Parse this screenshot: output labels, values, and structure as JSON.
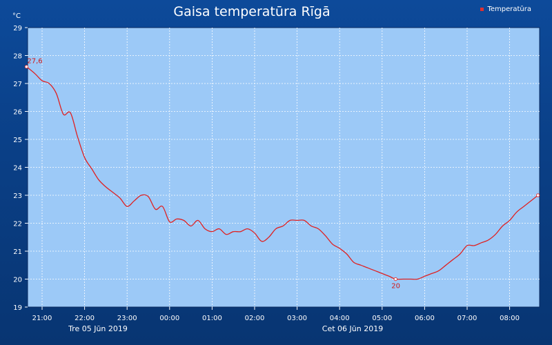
{
  "chart_data": {
    "type": "line",
    "title": "Gaisa temperatūra Rīgā",
    "unit_label": "°C",
    "legend": [
      "Temperatūra"
    ],
    "legend_position": "top-right",
    "grid": true,
    "ylim": [
      19,
      29
    ],
    "y_ticks": [
      "19",
      "20",
      "21",
      "22",
      "23",
      "24",
      "25",
      "26",
      "27",
      "28",
      "29"
    ],
    "x_ticks": [
      "21:00",
      "22:00",
      "23:00",
      "00:00",
      "01:00",
      "02:00",
      "03:00",
      "04:00",
      "05:00",
      "06:00",
      "07:00",
      "08:00"
    ],
    "date_labels": [
      "Tre 05 Jūn 2019",
      "Cet 06 Jūn 2019"
    ],
    "series": [
      {
        "name": "Temperatūra",
        "color": "#e02020",
        "x": [
          "20:38",
          "20:50",
          "21:00",
          "21:10",
          "21:20",
          "21:30",
          "21:40",
          "21:50",
          "22:00",
          "22:10",
          "22:20",
          "22:30",
          "22:40",
          "22:50",
          "23:00",
          "23:10",
          "23:20",
          "23:30",
          "23:40",
          "23:50",
          "00:00",
          "00:10",
          "00:20",
          "00:30",
          "00:40",
          "00:50",
          "01:00",
          "01:10",
          "01:20",
          "01:30",
          "01:40",
          "01:50",
          "02:00",
          "02:10",
          "02:20",
          "02:30",
          "02:40",
          "02:50",
          "03:00",
          "03:10",
          "03:20",
          "03:30",
          "03:40",
          "03:50",
          "04:00",
          "04:10",
          "04:20",
          "04:30",
          "04:40",
          "04:50",
          "05:00",
          "05:10",
          "05:19",
          "05:30",
          "05:40",
          "05:50",
          "06:00",
          "06:10",
          "06:20",
          "06:30",
          "06:40",
          "06:50",
          "07:00",
          "07:10",
          "07:20",
          "07:30",
          "07:40",
          "07:50",
          "08:00",
          "08:10",
          "08:20",
          "08:30",
          "08:40"
        ],
        "values": [
          27.6,
          27.35,
          27.1,
          27.0,
          26.65,
          25.9,
          25.95,
          25.1,
          24.35,
          23.95,
          23.55,
          23.3,
          23.1,
          22.9,
          22.6,
          22.8,
          23.0,
          22.95,
          22.5,
          22.6,
          22.05,
          22.15,
          22.1,
          21.9,
          22.1,
          21.8,
          21.7,
          21.8,
          21.6,
          21.7,
          21.7,
          21.8,
          21.65,
          21.35,
          21.5,
          21.8,
          21.9,
          22.1,
          22.1,
          22.1,
          21.9,
          21.8,
          21.55,
          21.25,
          21.1,
          20.9,
          20.6,
          20.5,
          20.4,
          20.3,
          20.2,
          20.1,
          20.0,
          20.0,
          20.0,
          20.0,
          20.1,
          20.2,
          20.3,
          20.5,
          20.7,
          20.9,
          21.2,
          21.2,
          21.3,
          21.4,
          21.6,
          21.9,
          22.1,
          22.4,
          22.6,
          22.8,
          23.0
        ]
      }
    ],
    "annotations": [
      {
        "x": "20:38",
        "y": 27.6,
        "text": "27,6"
      },
      {
        "x": "05:19",
        "y": 20.0,
        "text": "20"
      }
    ]
  }
}
